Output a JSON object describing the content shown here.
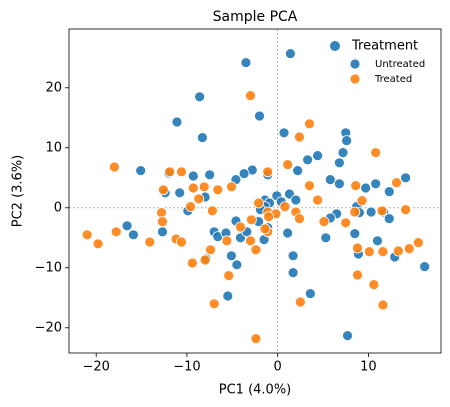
{
  "chart_data": {
    "type": "scatter",
    "title": "Sample PCA",
    "xlabel": "PC1 (4.0%)",
    "ylabel": "PC2 (3.6%)",
    "xlim": [
      -23,
      18
    ],
    "ylim": [
      -24.2,
      29.8
    ],
    "xticks": [
      {
        "value": -20,
        "label": "−20"
      },
      {
        "value": -10,
        "label": "−10"
      },
      0,
      10
    ],
    "yticks": [
      {
        "value": -20,
        "label": "−20"
      },
      {
        "value": -10,
        "label": "−10"
      },
      0,
      10,
      20
    ],
    "hline": 0,
    "vline": 0,
    "legend_title": "Treatment",
    "legend": "upper right",
    "series": [
      {
        "name": "Untreated",
        "color": "#1f77b4",
        "x": [
          1.4,
          -3.5,
          -8.6,
          -11.1,
          -8.3,
          -2.0,
          0.7,
          7.5,
          7.6,
          4.4,
          3.3,
          7.2,
          6.8,
          -15.1,
          -12.0,
          -9.3,
          -7.5,
          -4.6,
          -2.8,
          -3.7,
          -1.1,
          2.2,
          5.8,
          6.8,
          10.8,
          14.1,
          9.7,
          12.3,
          -12.4,
          -10.8,
          -8.0,
          -0.1,
          1.3,
          -1.4,
          -0.9,
          -1.4,
          -9.9,
          -1.9,
          0.4,
          2.0,
          6.5,
          8.7,
          10.3,
          11.7,
          12.3,
          5.8,
          9.0,
          -4.6,
          -2.1,
          -1.1,
          -16.6,
          -15.9,
          -12.7,
          -7.0,
          -6.6,
          -5.7,
          -4.1,
          -3.4,
          -1.5,
          1.1,
          5.3,
          8.5,
          8.9,
          11.0,
          12.9,
          16.2,
          -7.9,
          -5.1,
          -4.5,
          1.7,
          1.7,
          -5.5,
          3.6,
          7.7
        ],
        "values": [
          25.7,
          24.2,
          18.5,
          14.3,
          11.7,
          15.3,
          12.5,
          12.5,
          11.2,
          8.7,
          8.0,
          9.2,
          7.5,
          6.2,
          5.8,
          5.3,
          5.5,
          4.7,
          6.3,
          5.7,
          5.5,
          6.2,
          4.7,
          4.0,
          4.0,
          5.0,
          3.3,
          2.7,
          2.5,
          2.5,
          1.8,
          2.0,
          2.3,
          1.3,
          0.8,
          0.2,
          -0.5,
          -0.3,
          1.0,
          1.3,
          -1.0,
          0.2,
          -0.7,
          -0.7,
          -1.8,
          -1.7,
          -0.8,
          -2.2,
          -2.3,
          -3.3,
          -3.0,
          -4.5,
          -4.0,
          -4.0,
          -4.8,
          -4.2,
          -5.0,
          -4.0,
          -5.3,
          -4.2,
          -5.0,
          -4.3,
          -7.7,
          -5.5,
          -8.2,
          -9.8,
          -8.5,
          -8.0,
          -9.5,
          -8.0,
          -10.8,
          -14.7,
          -14.3,
          -21.3
        ]
      },
      {
        "name": "Treated",
        "color": "#ff7f0e",
        "x": [
          -3.0,
          2.4,
          3.5,
          10.8,
          -11.9,
          -10.6,
          -18.0,
          -8.1,
          -6.6,
          -5.1,
          1.1,
          -1.1,
          3.5,
          8.6,
          13.1,
          -12.6,
          -9.3,
          -8.7,
          -7.2,
          -12.8,
          -9.6,
          -2.1,
          -1.1,
          -0.2,
          0.8,
          2.0,
          4.4,
          8.5,
          9.3,
          11.5,
          14.1,
          2.4,
          5.1,
          7.5,
          -12.7,
          -2.9,
          -4.1,
          -1.1,
          -1.0,
          -21.0,
          -19.8,
          -17.8,
          -14.1,
          -11.2,
          -10.6,
          -9.4,
          -7.4,
          -8.0,
          -5.6,
          -3.0,
          -2.4,
          -1.4,
          8.8,
          10.1,
          11.6,
          13.3,
          14.5,
          15.5,
          -5.4,
          8.8,
          10.6,
          11.6,
          -7.0,
          2.5,
          -2.4
        ],
        "values": [
          18.7,
          11.8,
          14.0,
          9.2,
          6.0,
          6.0,
          6.8,
          3.5,
          3.0,
          3.5,
          7.2,
          6.0,
          3.7,
          3.7,
          4.2,
          3.0,
          3.3,
          1.5,
          -0.5,
          -0.8,
          0.2,
          0.8,
          -0.7,
          -1.0,
          0.2,
          -0.7,
          1.3,
          -0.7,
          1.2,
          -0.5,
          -0.3,
          -1.8,
          -2.3,
          -2.5,
          -2.3,
          -2.0,
          -3.2,
          -4.0,
          -1.5,
          -4.5,
          -6.0,
          -4.0,
          -5.7,
          -5.2,
          -5.7,
          -9.2,
          -7.0,
          -8.7,
          -5.5,
          -5.5,
          -7.0,
          -3.5,
          -6.7,
          -7.3,
          -7.3,
          -7.2,
          -6.8,
          -5.8,
          -11.3,
          -11.2,
          -12.8,
          -16.2,
          -16.0,
          -15.7,
          -21.8
        ]
      }
    ]
  }
}
